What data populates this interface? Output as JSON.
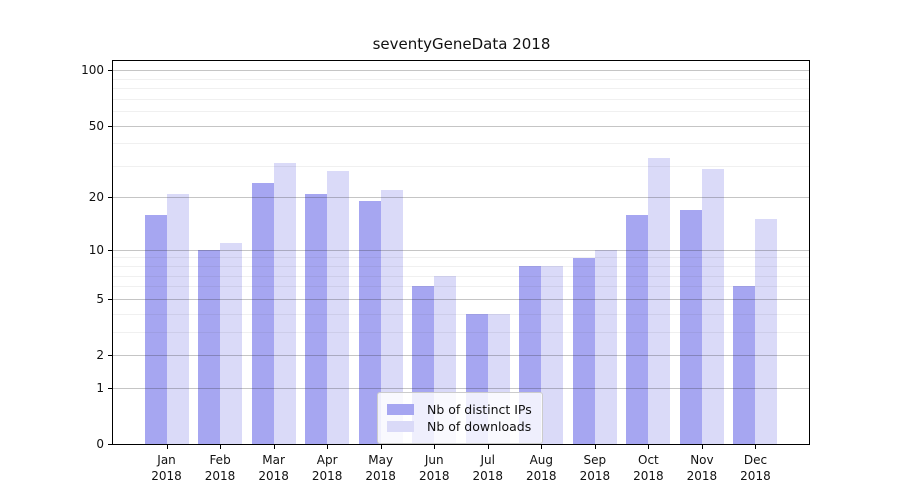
{
  "title": "seventyGeneData 2018",
  "chart_data": {
    "type": "bar",
    "title": "seventyGeneData 2018",
    "categories": [
      "Jan 2018",
      "Feb 2018",
      "Mar 2018",
      "Apr 2018",
      "May 2018",
      "Jun 2018",
      "Jul 2018",
      "Aug 2018",
      "Sep 2018",
      "Oct 2018",
      "Nov 2018",
      "Dec 2018"
    ],
    "series": [
      {
        "name": "Nb of distinct IPs",
        "color": "#a6a6f1",
        "values": [
          16,
          10,
          24,
          21,
          19,
          6,
          4,
          8,
          9,
          16,
          17,
          6
        ]
      },
      {
        "name": "Nb of downloads",
        "color": "#dadaf8",
        "values": [
          21,
          11,
          31,
          28,
          22,
          7,
          4,
          8,
          10,
          33,
          29,
          15
        ]
      }
    ],
    "xlabel": "",
    "ylabel": "",
    "y_scale": "log1p",
    "y_major_ticks": [
      0,
      1,
      2,
      5,
      10,
      20,
      50,
      100
    ],
    "y_minor_ticks": [
      3,
      4,
      6,
      7,
      8,
      9,
      30,
      40,
      60,
      70,
      80,
      90
    ],
    "ylim": [
      0,
      113
    ],
    "grid": "horizontal",
    "legend_position": "inside lower center",
    "colors": {
      "major_grid": "#bdbdbd",
      "minor_grid": "#ebebeb",
      "spine": "#000000",
      "legend_border": "#cccccc"
    }
  }
}
